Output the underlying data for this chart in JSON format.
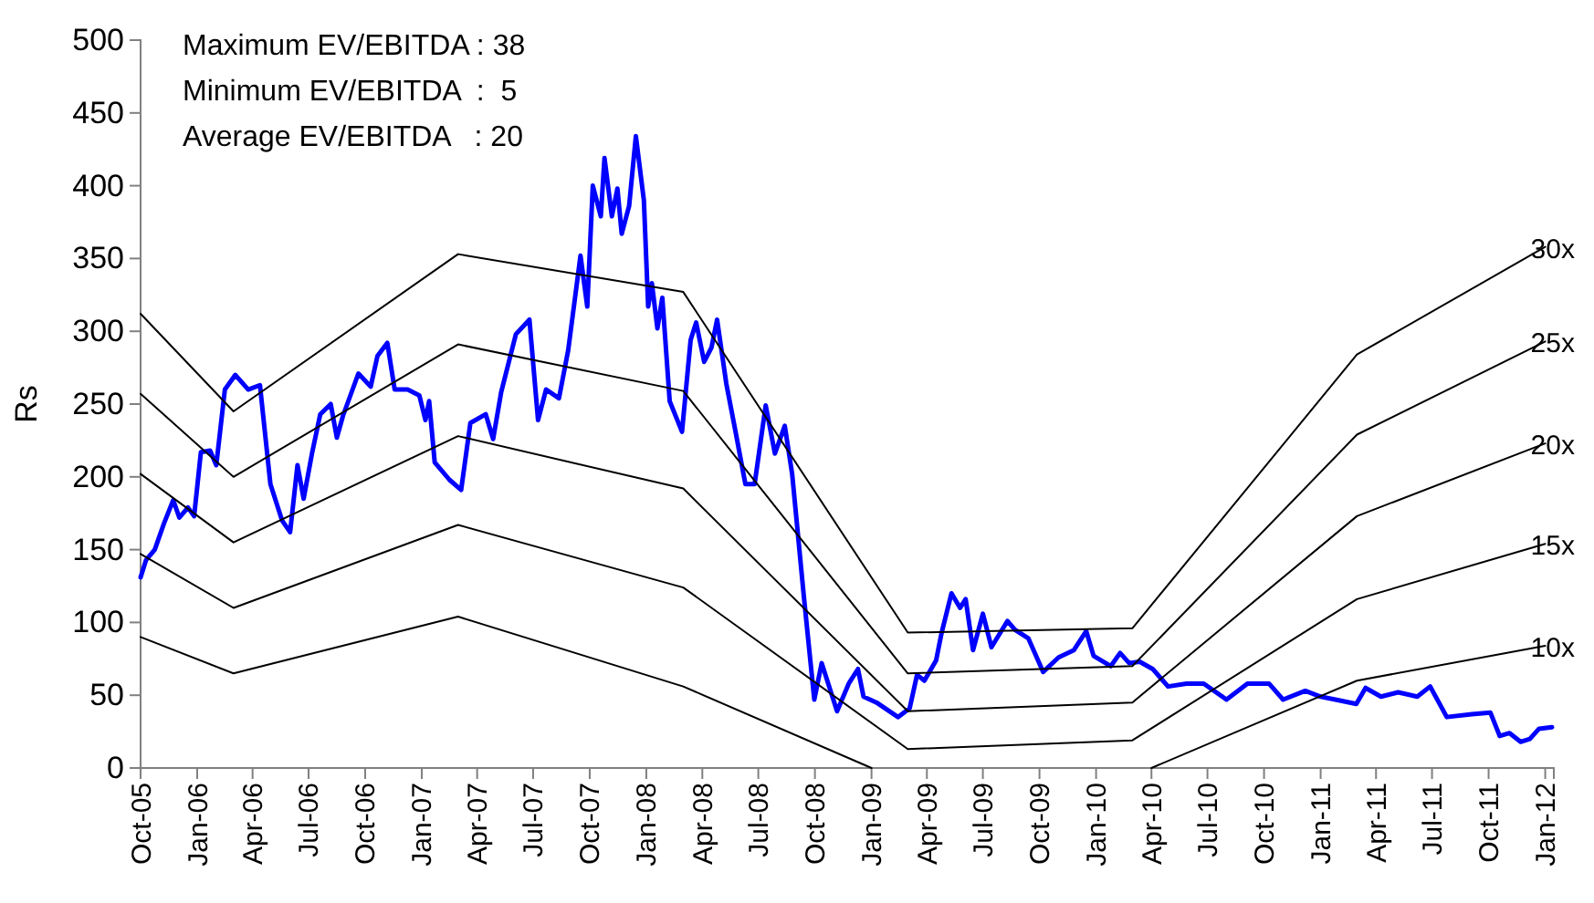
{
  "chart_data": {
    "type": "line",
    "ylabel": "Rs",
    "annotations": [
      "Maximum EV/EBITDA : 38",
      "Minimum EV/EBITDA  :  5",
      "Average EV/EBITDA   : 20"
    ],
    "xlim": [
      "2005-10-01",
      "2012-01-15"
    ],
    "ylim": [
      0,
      500
    ],
    "yticks": [
      0,
      50,
      100,
      150,
      200,
      250,
      300,
      350,
      400,
      450,
      500
    ],
    "xticks": [
      {
        "value": "2005-10-01",
        "label": "Oct-05"
      },
      {
        "value": "2006-01-01",
        "label": "Jan-06"
      },
      {
        "value": "2006-04-01",
        "label": "Apr-06"
      },
      {
        "value": "2006-07-01",
        "label": "Jul-06"
      },
      {
        "value": "2006-10-01",
        "label": "Oct-06"
      },
      {
        "value": "2007-01-01",
        "label": "Jan-07"
      },
      {
        "value": "2007-04-01",
        "label": "Apr-07"
      },
      {
        "value": "2007-07-01",
        "label": "Jul-07"
      },
      {
        "value": "2007-10-01",
        "label": "Oct-07"
      },
      {
        "value": "2008-01-01",
        "label": "Jan-08"
      },
      {
        "value": "2008-04-01",
        "label": "Apr-08"
      },
      {
        "value": "2008-07-01",
        "label": "Jul-08"
      },
      {
        "value": "2008-10-01",
        "label": "Oct-08"
      },
      {
        "value": "2009-01-01",
        "label": "Jan-09"
      },
      {
        "value": "2009-04-01",
        "label": "Apr-09"
      },
      {
        "value": "2009-07-01",
        "label": "Jul-09"
      },
      {
        "value": "2009-10-01",
        "label": "Oct-09"
      },
      {
        "value": "2010-01-01",
        "label": "Jan-10"
      },
      {
        "value": "2010-04-01",
        "label": "Apr-10"
      },
      {
        "value": "2010-07-01",
        "label": "Jul-10"
      },
      {
        "value": "2010-10-01",
        "label": "Oct-10"
      },
      {
        "value": "2011-01-01",
        "label": "Jan-11"
      },
      {
        "value": "2011-04-01",
        "label": "Apr-11"
      },
      {
        "value": "2011-07-01",
        "label": "Jul-11"
      },
      {
        "value": "2011-10-01",
        "label": "Oct-11"
      },
      {
        "value": "2012-01-01",
        "label": "Jan-12"
      }
    ],
    "grid": false,
    "marker": "none",
    "line_style": "solid",
    "series": [
      {
        "color": "#0000ff",
        "x": [
          "2005-10-01",
          "2005-10-10",
          "2005-10-24",
          "2005-11-08",
          "2005-11-23",
          "2005-12-03",
          "2005-12-17",
          "2005-12-27",
          "2006-01-07",
          "2006-01-22",
          "2006-02-01",
          "2006-02-15",
          "2006-03-04",
          "2006-03-25",
          "2006-04-13",
          "2006-04-30",
          "2006-05-19",
          "2006-06-01",
          "2006-06-13",
          "2006-06-23",
          "2006-07-07",
          "2006-07-20",
          "2006-08-06",
          "2006-08-16",
          "2006-08-26",
          "2006-09-20",
          "2006-10-10",
          "2006-10-21",
          "2006-11-06",
          "2006-11-18",
          "2006-12-09",
          "2006-12-28",
          "2007-01-07",
          "2007-01-13",
          "2007-01-22",
          "2007-02-15",
          "2007-03-06",
          "2007-03-21",
          "2007-04-15",
          "2007-04-27",
          "2007-05-10",
          "2007-06-03",
          "2007-06-25",
          "2007-07-09",
          "2007-07-22",
          "2007-08-12",
          "2007-08-27",
          "2007-09-16",
          "2007-09-27",
          "2007-10-06",
          "2007-10-19",
          "2007-10-25",
          "2007-11-06",
          "2007-11-15",
          "2007-11-22",
          "2007-12-04",
          "2007-12-15",
          "2007-12-28",
          "2008-01-04",
          "2008-01-10",
          "2008-01-19",
          "2008-01-27",
          "2008-02-08",
          "2008-02-28",
          "2008-03-13",
          "2008-03-22",
          "2008-04-04",
          "2008-04-16",
          "2008-04-25",
          "2008-05-10",
          "2008-05-25",
          "2008-06-10",
          "2008-06-25",
          "2008-07-13",
          "2008-07-28",
          "2008-08-13",
          "2008-08-25",
          "2008-09-13",
          "2008-09-30",
          "2008-10-12",
          "2008-11-06",
          "2008-11-25",
          "2008-12-10",
          "2008-12-19",
          "2009-01-09",
          "2009-02-13",
          "2009-03-04",
          "2009-03-16",
          "2009-03-28",
          "2009-04-16",
          "2009-04-25",
          "2009-05-11",
          "2009-05-25",
          "2009-06-03",
          "2009-06-15",
          "2009-07-01",
          "2009-07-15",
          "2009-08-10",
          "2009-08-22",
          "2009-09-13",
          "2009-10-07",
          "2009-11-01",
          "2009-11-26",
          "2009-12-16",
          "2009-12-28",
          "2010-01-25",
          "2010-02-09",
          "2010-02-24",
          "2010-03-13",
          "2010-04-03",
          "2010-04-28",
          "2010-05-28",
          "2010-06-25",
          "2010-08-01",
          "2010-09-04",
          "2010-10-09",
          "2010-11-01",
          "2010-12-07",
          "2011-01-01",
          "2011-01-25",
          "2011-02-28",
          "2011-03-15",
          "2011-04-09",
          "2011-05-07",
          "2011-06-07",
          "2011-06-28",
          "2011-07-25",
          "2011-09-04",
          "2011-10-04",
          "2011-10-19",
          "2011-11-04",
          "2011-11-22",
          "2011-12-07",
          "2011-12-22",
          "2012-01-12"
        ],
        "values": [
          131,
          143,
          150,
          168,
          184,
          172,
          179,
          173,
          217,
          218,
          208,
          260,
          270,
          260,
          263,
          195,
          170,
          162,
          208,
          185,
          217,
          243,
          250,
          227,
          242,
          271,
          262,
          283,
          292,
          260,
          260,
          256,
          239,
          252,
          210,
          198,
          191,
          237,
          243,
          226,
          258,
          298,
          308,
          239,
          260,
          254,
          287,
          352,
          317,
          400,
          379,
          419,
          379,
          398,
          367,
          386,
          434,
          390,
          317,
          333,
          302,
          323,
          252,
          231,
          294,
          306,
          279,
          289,
          308,
          264,
          231,
          195,
          195,
          249,
          216,
          235,
          202,
          118,
          47,
          72,
          39,
          58,
          68,
          49,
          45,
          35,
          41,
          64,
          60,
          74,
          93,
          120,
          110,
          116,
          81,
          106,
          83,
          101,
          95,
          89,
          66,
          76,
          81,
          94,
          77,
          70,
          79,
          72,
          73,
          68,
          56,
          58,
          58,
          47,
          58,
          58,
          47,
          53,
          49,
          47,
          44,
          55,
          49,
          52,
          49,
          56,
          35,
          37,
          38,
          22,
          24,
          18,
          20,
          27,
          28
        ]
      },
      {
        "name": "30x",
        "color": "#000000",
        "x": [
          "2005-10-01",
          "2006-03-01",
          "2007-03-01",
          "2008-03-01",
          "2009-03-01",
          "2010-03-01",
          "2011-03-01",
          "2012-01-01"
        ],
        "values": [
          312,
          245,
          353,
          327,
          93,
          96,
          284,
          358
        ]
      },
      {
        "name": "25x",
        "color": "#000000",
        "x": [
          "2005-10-01",
          "2006-03-01",
          "2007-03-01",
          "2008-03-01",
          "2009-03-01",
          "2010-03-01",
          "2011-03-01",
          "2012-01-01"
        ],
        "values": [
          257,
          200,
          291,
          259,
          65,
          70,
          229,
          293
        ]
      },
      {
        "name": "20x",
        "color": "#000000",
        "x": [
          "2005-10-01",
          "2006-03-01",
          "2007-03-01",
          "2008-03-01",
          "2009-03-01",
          "2010-03-01",
          "2011-03-01",
          "2012-01-01"
        ],
        "values": [
          202,
          155,
          228,
          192,
          39,
          45,
          173,
          223
        ]
      },
      {
        "name": "15x",
        "color": "#000000",
        "x": [
          "2005-10-01",
          "2006-03-01",
          "2007-03-01",
          "2008-03-01",
          "2009-03-01",
          "2010-03-01",
          "2011-03-01",
          "2012-01-01"
        ],
        "values": [
          147,
          110,
          167,
          124,
          13,
          19,
          116,
          154
        ]
      },
      {
        "name": "10x",
        "color": "#000000",
        "x": [
          "2005-10-01",
          "2006-03-01",
          "2007-03-01",
          "2008-03-01",
          "2009-01-01",
          "2009-09-01",
          "2010-04-01",
          "2011-03-01",
          "2012-01-01"
        ],
        "values": [
          90,
          65,
          104,
          56,
          0,
          null,
          0,
          60,
          84
        ]
      }
    ]
  }
}
